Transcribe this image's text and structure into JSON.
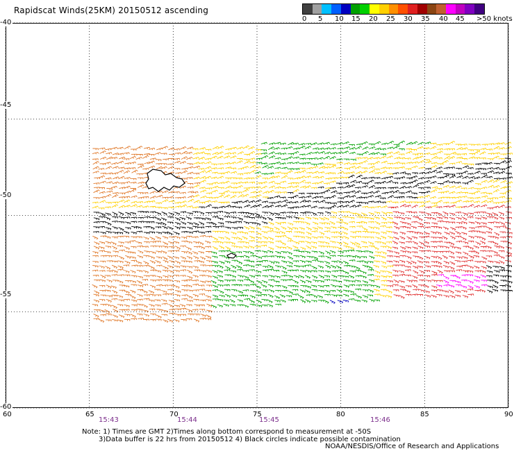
{
  "title": "Rapidscat Winds(25KM) 20150512 ascending",
  "colorbar": {
    "colors": [
      "#404040",
      "#a0a0a0",
      "#00c0ff",
      "#0060ff",
      "#0000c0",
      "#00a000",
      "#00d000",
      "#ffff00",
      "#ffd000",
      "#ff9000",
      "#ff5000",
      "#e02020",
      "#a00000",
      "#8b4513",
      "#c06030",
      "#ff00ff",
      "#c000c0",
      "#8000c0",
      "#400080"
    ],
    "labels": [
      "0",
      "5",
      "10",
      "15",
      "20",
      "25",
      "30",
      "35",
      "40",
      "45",
      ">50 knots"
    ]
  },
  "axes": {
    "lon_ticks": [
      "60",
      "65",
      "70",
      "75",
      "80",
      "85",
      "90"
    ],
    "lat_ticks": [
      "-40",
      "-45",
      "-50",
      "-55",
      "-60"
    ],
    "lon_range": [
      60,
      90
    ],
    "lat_range": [
      -60,
      -40
    ]
  },
  "time_labels": [
    "15:43",
    "15:44",
    "15:45",
    "15:46"
  ],
  "notes": {
    "line1": "Note: 1) Times are GMT 2)Times along bottom correspond to measurement at -50S",
    "line2": "3)Data buffer is 22 hrs from 20150512 4) Black circles indicate possible contamination"
  },
  "credit": "NOAA/NESDIS/Office of Research and Applications",
  "wind_regions": [
    {
      "name": "north-orange-band",
      "color": "#e07828",
      "speed_kt": 30
    },
    {
      "name": "north-yellow-band",
      "color": "#ffd000",
      "speed_kt": 25
    },
    {
      "name": "north-green-band",
      "color": "#00a000",
      "speed_kt": 20
    },
    {
      "name": "central-black-band",
      "color": "#000000",
      "speed_kt": 0
    },
    {
      "name": "south-orange-band",
      "color": "#e07828",
      "speed_kt": 30
    },
    {
      "name": "south-yellow-band",
      "color": "#ffd000",
      "speed_kt": 25
    },
    {
      "name": "south-green-band",
      "color": "#00a000",
      "speed_kt": 20
    },
    {
      "name": "southeast-red-band",
      "color": "#e03030",
      "speed_kt": 35
    },
    {
      "name": "south-blue-patch",
      "color": "#0000c0",
      "speed_kt": 15
    },
    {
      "name": "magenta-patch",
      "color": "#ff00ff",
      "speed_kt": 45
    }
  ],
  "land": [
    "kerguelen-islands",
    "heard-island"
  ]
}
